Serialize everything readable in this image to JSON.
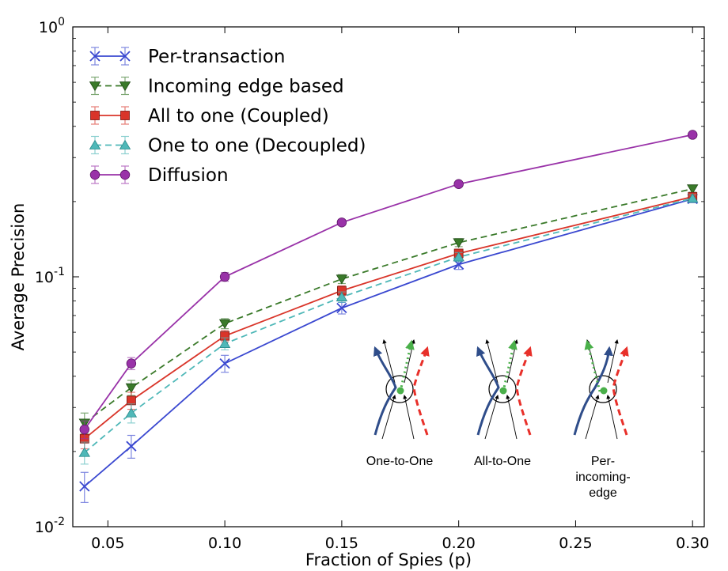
{
  "chart_data": {
    "type": "line",
    "xlabel": "Fraction of Spies (p)",
    "ylabel": "Average Precision",
    "xlim": [
      0.035,
      0.305
    ],
    "ylim": [
      0.01,
      1
    ],
    "yscale": "log",
    "grid": false,
    "legend_position": "top-left",
    "x_ticks": [
      "0.05",
      "0.10",
      "0.15",
      "0.20",
      "0.25",
      "0.30"
    ],
    "x_tick_values": [
      0.05,
      0.1,
      0.15,
      0.2,
      0.25,
      0.3
    ],
    "y_ticks": [
      {
        "value": 1,
        "base": "10",
        "exp": "0"
      },
      {
        "value": 0.1,
        "base": "10",
        "exp": "-1"
      },
      {
        "value": 0.01,
        "base": "10",
        "exp": "-2"
      }
    ],
    "x": [
      0.04,
      0.06,
      0.1,
      0.15,
      0.2,
      0.3
    ],
    "series": [
      {
        "name": "Per-transaction",
        "color": "#3a48d0",
        "marker": "x",
        "dash": "solid",
        "values": [
          0.0145,
          0.021,
          0.045,
          0.075,
          0.112,
          0.205
        ],
        "err": [
          0.002,
          0.0022,
          0.0035,
          0.004,
          0.005,
          0.007
        ]
      },
      {
        "name": "Incoming edge based",
        "color": "#3a7a2a",
        "marker": "triangle-down",
        "dash": "dashed",
        "values": [
          0.026,
          0.036,
          0.065,
          0.098,
          0.137,
          0.225
        ],
        "err": [
          0.0025,
          0.0025,
          0.003,
          0.004,
          0.005,
          0.007
        ]
      },
      {
        "name": "All to one (Coupled)",
        "color": "#d9352a",
        "marker": "square",
        "dash": "solid",
        "values": [
          0.0225,
          0.032,
          0.058,
          0.088,
          0.124,
          0.209
        ],
        "err": [
          0.002,
          0.0025,
          0.003,
          0.004,
          0.005,
          0.007
        ]
      },
      {
        "name": "One to one (Decoupled)",
        "color": "#4fb8b8",
        "marker": "triangle-up",
        "dash": "dashed",
        "values": [
          0.0198,
          0.0285,
          0.054,
          0.083,
          0.12,
          0.206
        ],
        "err": [
          0.002,
          0.0025,
          0.003,
          0.004,
          0.005,
          0.007
        ]
      },
      {
        "name": "Diffusion",
        "color": "#9932a8",
        "marker": "circle",
        "dash": "solid",
        "values": [
          0.0245,
          0.045,
          0.1,
          0.165,
          0.235,
          0.37
        ],
        "err": [
          0.002,
          0.0025,
          0.004,
          0.004,
          0.005,
          0.008
        ]
      }
    ],
    "inset": {
      "labels": [
        {
          "lines": [
            "One-to-One"
          ]
        },
        {
          "lines": [
            "All-to-One"
          ]
        },
        {
          "lines": [
            "Per-",
            "incoming-",
            "edge"
          ]
        }
      ]
    }
  }
}
